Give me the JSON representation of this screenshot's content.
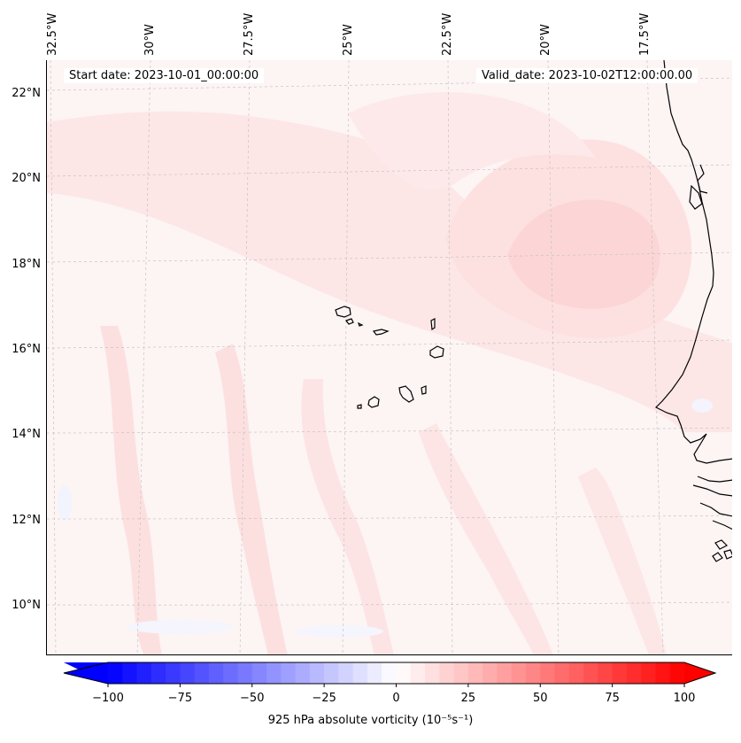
{
  "header": {
    "start_date": "Start date: 2023-10-01_00:00:00",
    "valid_date": "Valid_date: 2023-10-02T12:00:00.00"
  },
  "longitude_labels": [
    "32.5°W",
    "30°W",
    "27.5°W",
    "25°W",
    "22.5°W",
    "20°W",
    "17.5°W"
  ],
  "latitude_labels": [
    "22°N",
    "20°N",
    "18°N",
    "16°N",
    "14°N",
    "12°N",
    "10°N"
  ],
  "colorbar": {
    "label": "925 hPa absolute vorticity (10⁻⁵s⁻¹)",
    "ticks": [
      "−100",
      "−75",
      "−50",
      "−25",
      "0",
      "25",
      "50",
      "75",
      "100"
    ],
    "min": -100,
    "max": 100,
    "step": 5,
    "colormap": "bwr",
    "low_color": "#0000ff",
    "mid_color": "#ffffff",
    "high_color": "#ff0000"
  },
  "map": {
    "field_color_light": "#fdf4f4",
    "field_color_band": "#fde3e3",
    "coastline_color": "#000000",
    "gridline_color": "#bdbdbd"
  }
}
